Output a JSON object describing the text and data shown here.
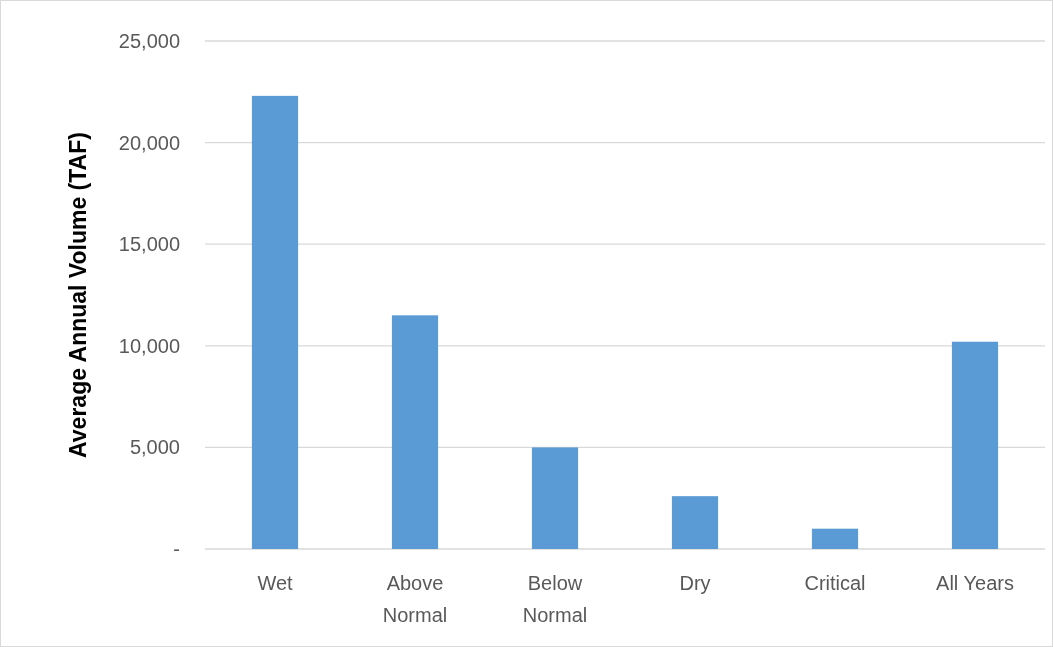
{
  "chart_data": {
    "type": "bar",
    "ylabel": "Average Annual Volume (TAF)",
    "categories": [
      "Wet",
      "Above Normal",
      "Below Normal",
      "Dry",
      "Critical",
      "All Years"
    ],
    "values": [
      22300,
      11500,
      5000,
      2600,
      1000,
      10200
    ],
    "color": "#5b9bd5",
    "ylim": [
      0,
      25000
    ],
    "yticks": [
      {
        "value": 0,
        "label": "-"
      },
      {
        "value": 5000,
        "label": "5,000"
      },
      {
        "value": 10000,
        "label": "10,000"
      },
      {
        "value": 15000,
        "label": "15,000"
      },
      {
        "value": 20000,
        "label": "20,000"
      },
      {
        "value": 25000,
        "label": "25,000"
      }
    ],
    "grid": "y"
  }
}
